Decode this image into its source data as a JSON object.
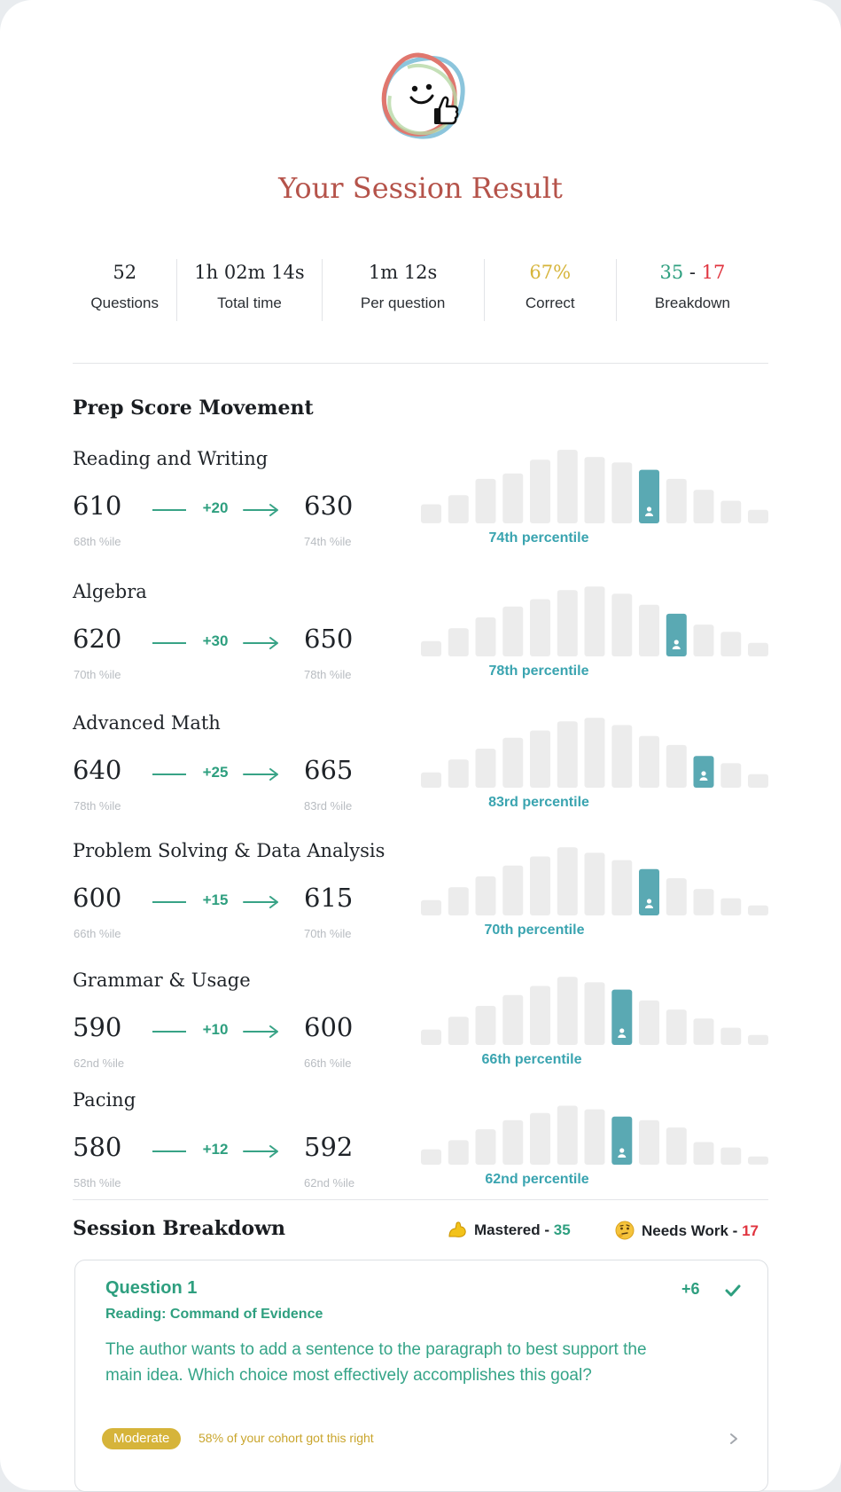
{
  "page": {
    "title": "Your Session Result",
    "logo_icon": "smiley-thumbs-up-icon"
  },
  "stats": [
    {
      "value": "52",
      "label": "Questions"
    },
    {
      "value": "1h 02m 14s",
      "label": "Total time"
    },
    {
      "value": "1m 12s",
      "label": "Per question"
    },
    {
      "value": "67%",
      "label": "Correct"
    },
    {
      "value_correct": "35",
      "separator": "-",
      "value_wrong": "17",
      "label": "Breakdown"
    }
  ],
  "movement": {
    "title": "Prep Score Movement",
    "metrics": [
      {
        "name": "Reading and Writing",
        "from": "610",
        "from_pct": "68th %ile",
        "delta": "+20",
        "to": "630",
        "to_pct": "74th %ile",
        "percentile_label": "74th percentile",
        "distribution": [
          18,
          28,
          46,
          52,
          67,
          78,
          70,
          64,
          56,
          46,
          34,
          22,
          12
        ],
        "highlight": 8
      },
      {
        "name": "Algebra",
        "from": "620",
        "from_pct": "70th %ile",
        "delta": "+30",
        "to": "650",
        "to_pct": "78th %ile",
        "percentile_label": "78th percentile",
        "distribution": [
          14,
          28,
          40,
          52,
          60,
          70,
          74,
          66,
          54,
          44,
          32,
          24,
          12
        ],
        "highlight": 9
      },
      {
        "name": "Advanced Math",
        "from": "640",
        "from_pct": "78th %ile",
        "delta": "+25",
        "to": "665",
        "to_pct": "83rd %ile",
        "percentile_label": "83rd percentile",
        "distribution": [
          14,
          28,
          40,
          52,
          60,
          70,
          74,
          66,
          54,
          44,
          32,
          24,
          12
        ],
        "highlight": 10
      },
      {
        "name": "Problem Solving & Data Analysis",
        "from": "600",
        "from_pct": "66th %ile",
        "delta": "+15",
        "to": "615",
        "to_pct": "70th %ile",
        "percentile_label": "70th percentile",
        "distribution": [
          14,
          28,
          40,
          52,
          62,
          72,
          66,
          58,
          48,
          38,
          26,
          16,
          8
        ],
        "highlight": 8
      },
      {
        "name": "Grammar & Usage",
        "from": "590",
        "from_pct": "62nd %ile",
        "delta": "+10",
        "to": "600",
        "to_pct": "66th %ile",
        "percentile_label": "66th percentile",
        "distribution": [
          14,
          28,
          40,
          52,
          62,
          72,
          66,
          58,
          46,
          36,
          26,
          16,
          8
        ],
        "highlight": 7
      },
      {
        "name": "Pacing",
        "from": "580",
        "from_pct": "58th %ile",
        "delta": "+12",
        "to": "592",
        "to_pct": "62nd %ile",
        "percentile_label": "62nd percentile",
        "distribution": [
          14,
          24,
          36,
          46,
          54,
          62,
          58,
          50,
          46,
          38,
          22,
          16,
          6
        ],
        "highlight": 7
      }
    ]
  },
  "breakdown": {
    "title": "Session Breakdown",
    "mastered_icon": "flexed-arm-icon",
    "mastered_label": "Mastered - ",
    "mastered_count": "35",
    "needs_icon": "thinking-face-icon",
    "needs_label": "Needs Work - ",
    "needs_count": "17"
  },
  "question": {
    "title": "Question 1",
    "category": "Reading: Command of Evidence",
    "score": "+6",
    "status_icon": "check-icon",
    "text": "The author wants to add a sentence to the paragraph to best support the main idea. Which choice most effectively accomplishes this goal?",
    "difficulty": "Moderate",
    "cohort": "58% of your cohort got this right",
    "chevron_icon": "chevron-right-icon"
  },
  "colors": {
    "title_red": "#b5534a",
    "green": "#2e9f7f",
    "teal": "#5aa9b3",
    "yellow": "#d6b43a",
    "red": "#e0343f",
    "bar_gray": "#ececec"
  }
}
